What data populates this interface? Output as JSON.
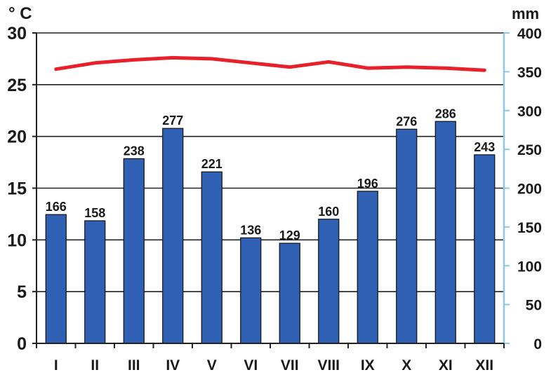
{
  "chart_data": {
    "type": "bar",
    "title": "",
    "categories": [
      "I",
      "II",
      "III",
      "IV",
      "V",
      "VI",
      "VII",
      "VIII",
      "IX",
      "X",
      "XI",
      "XII"
    ],
    "precipitation": {
      "axis_unit": "mm",
      "values": [
        166,
        158,
        238,
        277,
        221,
        136,
        129,
        160,
        196,
        276,
        286,
        243
      ],
      "ylim": [
        0,
        400
      ],
      "ticks": [
        "0",
        "50",
        "100",
        "150",
        "200",
        "250",
        "300",
        "350",
        "400"
      ],
      "color": "#3060b4"
    },
    "temperature": {
      "axis_unit": "° C",
      "values": [
        26.5,
        27.1,
        27.4,
        27.6,
        27.5,
        27.1,
        26.7,
        27.2,
        26.6,
        26.7,
        26.6,
        26.4
      ],
      "ylim": [
        0,
        30
      ],
      "ticks": [
        "0",
        "5",
        "10",
        "15",
        "20",
        "25",
        "30"
      ],
      "color": "#e8202a"
    },
    "grid": true,
    "legend": "none"
  }
}
